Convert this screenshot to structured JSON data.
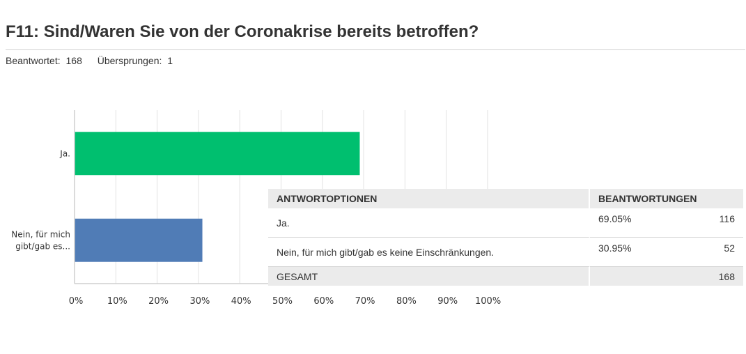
{
  "question": {
    "title": "F11: Sind/Waren Sie von der Coronakrise bereits betroffen?",
    "answered_label": "Beantwortet:",
    "answered_count": "168",
    "skipped_label": "Übersprungen:",
    "skipped_count": "1"
  },
  "chart_data": {
    "type": "bar",
    "orientation": "horizontal",
    "categories": [
      "Ja.",
      "Nein, für mich gibt/gab es..."
    ],
    "values": [
      69.05,
      30.95
    ],
    "colors": [
      "#00bf6f",
      "#507cb6"
    ],
    "xlim": [
      0,
      100
    ],
    "x_ticks": [
      "0%",
      "10%",
      "20%",
      "30%",
      "40%",
      "50%",
      "60%",
      "70%",
      "80%",
      "90%",
      "100%"
    ],
    "grid": true
  },
  "table": {
    "headers": [
      "ANTWORTOPTIONEN",
      "BEANTWORTUNGEN"
    ],
    "rows": [
      {
        "option": "Ja.",
        "percent": "69.05%",
        "count": "116"
      },
      {
        "option": "Nein, für mich gibt/gab es keine Einschränkungen.",
        "percent": "30.95%",
        "count": "52"
      }
    ],
    "total_label": "GESAMT",
    "total_count": "168"
  }
}
